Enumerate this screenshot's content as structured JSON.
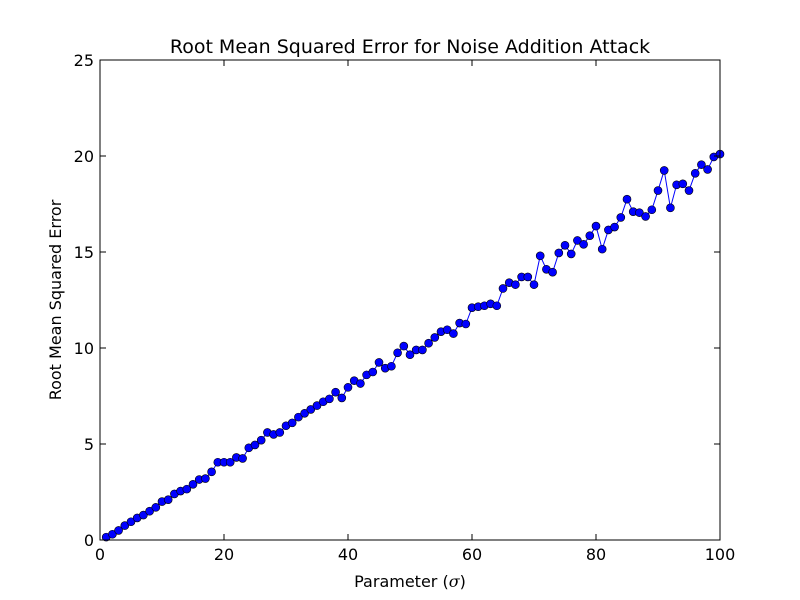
{
  "chart_data": {
    "type": "line",
    "title": "Root Mean Squared Error for Noise Addition Attack",
    "xlabel_prefix": "Parameter (",
    "xlabel_symbol": "σ",
    "xlabel_suffix": ")",
    "ylabel": "Root Mean Squared Error",
    "xlim": [
      0,
      100
    ],
    "ylim": [
      0,
      25
    ],
    "xticks": [
      0,
      20,
      40,
      60,
      80,
      100
    ],
    "yticks": [
      0,
      5,
      10,
      15,
      20,
      25
    ],
    "grid": false,
    "legend": "none",
    "marker": "circle",
    "series": [
      {
        "color": "#0000ff",
        "x": [
          1,
          2,
          3,
          4,
          5,
          6,
          7,
          8,
          9,
          10,
          11,
          12,
          13,
          14,
          15,
          16,
          17,
          18,
          19,
          20,
          21,
          22,
          23,
          24,
          25,
          26,
          27,
          28,
          29,
          30,
          31,
          32,
          33,
          34,
          35,
          36,
          37,
          38,
          39,
          40,
          41,
          42,
          43,
          44,
          45,
          46,
          47,
          48,
          49,
          50,
          51,
          52,
          53,
          54,
          55,
          56,
          57,
          58,
          59,
          60,
          61,
          62,
          63,
          64,
          65,
          66,
          67,
          68,
          69,
          70,
          71,
          72,
          73,
          74,
          75,
          76,
          77,
          78,
          79,
          80,
          81,
          82,
          83,
          84,
          85,
          86,
          87,
          88,
          89,
          90,
          91,
          92,
          93,
          94,
          95,
          96,
          97,
          98,
          99,
          100
        ],
        "y": [
          0.15,
          0.3,
          0.5,
          0.75,
          0.95,
          1.15,
          1.3,
          1.5,
          1.7,
          2.0,
          2.1,
          2.4,
          2.55,
          2.65,
          2.9,
          3.15,
          3.2,
          3.55,
          4.05,
          4.05,
          4.05,
          4.3,
          4.25,
          4.8,
          4.95,
          5.2,
          5.6,
          5.5,
          5.6,
          5.95,
          6.1,
          6.4,
          6.6,
          6.8,
          7.0,
          7.2,
          7.35,
          7.7,
          7.4,
          7.95,
          8.3,
          8.15,
          8.6,
          8.75,
          9.25,
          8.95,
          9.05,
          9.75,
          10.1,
          9.65,
          9.9,
          9.9,
          10.25,
          10.55,
          10.85,
          10.95,
          10.75,
          11.3,
          11.25,
          12.1,
          12.15,
          12.2,
          12.3,
          12.2,
          13.1,
          13.4,
          13.3,
          13.7,
          13.7,
          13.3,
          14.8,
          14.1,
          13.95,
          14.95,
          15.35,
          14.9,
          15.6,
          15.4,
          15.85,
          16.35,
          15.15,
          16.15,
          16.3,
          16.8,
          17.75,
          17.1,
          17.05,
          16.85,
          17.2,
          18.2,
          19.25,
          17.3,
          18.5,
          18.55,
          18.2,
          19.1,
          19.55,
          19.3,
          19.95,
          20.1
        ]
      }
    ]
  }
}
